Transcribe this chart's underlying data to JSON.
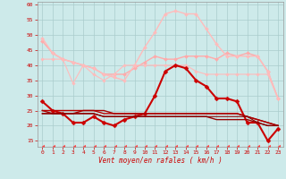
{
  "x": [
    0,
    1,
    2,
    3,
    4,
    5,
    6,
    7,
    8,
    9,
    10,
    11,
    12,
    13,
    14,
    15,
    16,
    17,
    18,
    19,
    20,
    21,
    22,
    23
  ],
  "ylim": [
    13,
    61
  ],
  "yticks": [
    15,
    20,
    25,
    30,
    35,
    40,
    45,
    50,
    55,
    60
  ],
  "xlabel": "Vent moyen/en rafales ( km/h )",
  "bg_color": "#cdeaea",
  "grid_color": "#aacccc",
  "series": [
    {
      "y": [
        48,
        44,
        42,
        41,
        40,
        39,
        37,
        37,
        37,
        39,
        41,
        43,
        42,
        42,
        43,
        43,
        43,
        42,
        44,
        43,
        44,
        43,
        38,
        29
      ],
      "color": "#ffaaaa",
      "lw": 1.0,
      "marker": "D",
      "ms": 2.0,
      "ls": "-"
    },
    {
      "y": [
        49,
        44,
        42,
        41,
        40,
        39,
        37,
        36,
        35,
        40,
        46,
        51,
        57,
        58,
        57,
        57,
        52,
        47,
        43,
        43,
        43,
        43,
        38,
        29
      ],
      "color": "#ffbbbb",
      "lw": 1.0,
      "marker": "D",
      "ms": 2.0,
      "ls": "-"
    },
    {
      "y": [
        42,
        42,
        42,
        34,
        40,
        37,
        35,
        37,
        40,
        40,
        40,
        40,
        40,
        40,
        40,
        38,
        37,
        37,
        37,
        37,
        37,
        37,
        37,
        29
      ],
      "color": "#ffbbbb",
      "lw": 0.8,
      "marker": "D",
      "ms": 1.8,
      "ls": "-"
    },
    {
      "y": [
        28,
        25,
        24,
        21,
        21,
        23,
        21,
        20,
        22,
        23,
        24,
        30,
        38,
        40,
        39,
        35,
        33,
        29,
        29,
        28,
        21,
        21,
        15,
        19
      ],
      "color": "#cc0000",
      "lw": 1.5,
      "marker": "D",
      "ms": 2.5,
      "ls": "-"
    },
    {
      "y": [
        25,
        25,
        25,
        25,
        25,
        25,
        24,
        24,
        24,
        24,
        24,
        24,
        24,
        24,
        24,
        24,
        24,
        24,
        24,
        24,
        23,
        22,
        21,
        20
      ],
      "color": "#bb0000",
      "lw": 1.0,
      "marker": null,
      "ms": 0,
      "ls": "-"
    },
    {
      "y": [
        25,
        24,
        24,
        24,
        25,
        25,
        25,
        24,
        24,
        24,
        24,
        24,
        24,
        24,
        24,
        24,
        24,
        24,
        24,
        24,
        23,
        22,
        21,
        20
      ],
      "color": "#aa0000",
      "lw": 1.0,
      "marker": null,
      "ms": 0,
      "ls": "-"
    },
    {
      "y": [
        24,
        24,
        24,
        24,
        24,
        24,
        23,
        23,
        23,
        23,
        23,
        23,
        23,
        23,
        23,
        23,
        23,
        22,
        22,
        22,
        22,
        21,
        20,
        20
      ],
      "color": "#990000",
      "lw": 1.0,
      "marker": null,
      "ms": 0,
      "ls": "-"
    },
    {
      "y": [
        24,
        24,
        24,
        24,
        24,
        24,
        23,
        23,
        23,
        23,
        23,
        23,
        23,
        23,
        23,
        23,
        23,
        23,
        23,
        23,
        23,
        21,
        20,
        20
      ],
      "color": "#880000",
      "lw": 0.8,
      "marker": null,
      "ms": 0,
      "ls": "-"
    },
    {
      "y": [
        13,
        13,
        13,
        13,
        13,
        13,
        13,
        13,
        13,
        13,
        13,
        13,
        13,
        13,
        13,
        13,
        13,
        13,
        13,
        13,
        13,
        13,
        13,
        13
      ],
      "color": "#ff4444",
      "lw": 0.8,
      "marker": 4,
      "ms": 3.0,
      "ls": "--"
    }
  ]
}
